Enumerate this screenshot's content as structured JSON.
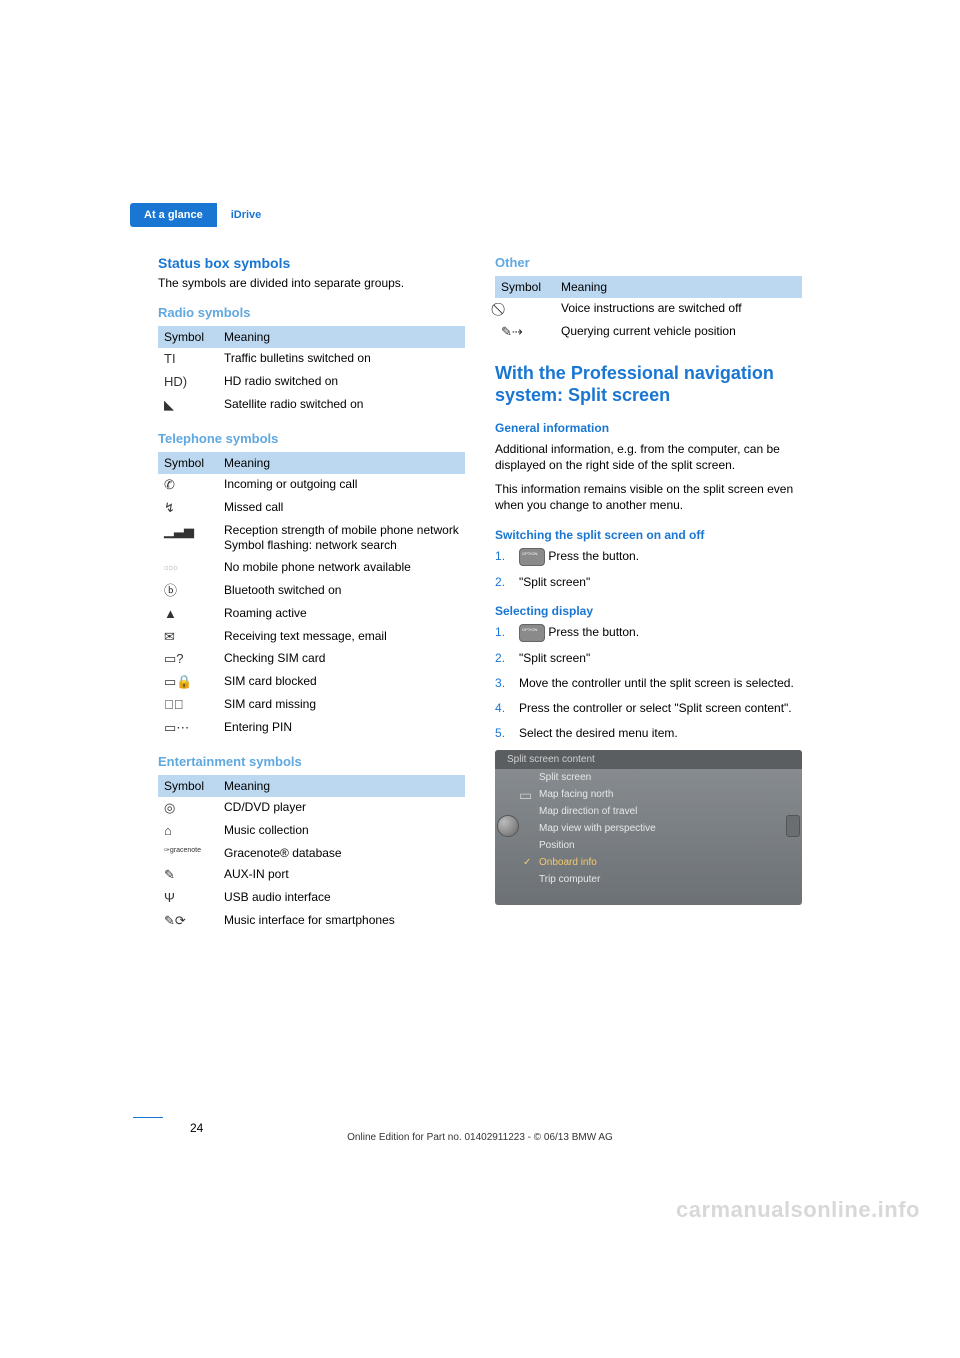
{
  "tab": {
    "active": "At a glance",
    "inactive": "iDrive"
  },
  "left": {
    "title": "Status box symbols",
    "intro": "The symbols are divided into separate groups.",
    "radio": {
      "heading": "Radio symbols",
      "th1": "Symbol",
      "th2": "Meaning",
      "rows": [
        {
          "sym": "TI",
          "txt": "Traffic bulletins switched on"
        },
        {
          "sym": "HD)",
          "txt": "HD radio switched on"
        },
        {
          "sym": "◣",
          "txt": "Satellite radio switched on"
        }
      ]
    },
    "tel": {
      "heading": "Telephone symbols",
      "th1": "Symbol",
      "th2": "Meaning",
      "rows": [
        {
          "sym": "✆",
          "txt": "Incoming or outgoing call"
        },
        {
          "sym": "↯",
          "txt": "Missed call"
        },
        {
          "sym": "▁▃▅",
          "txt": "Reception strength of mobile phone network\nSymbol flashing: network search"
        },
        {
          "sym": "▫▫▫",
          "txt": "No mobile phone network available"
        },
        {
          "sym": "ⓑ",
          "txt": "Bluetooth switched on"
        },
        {
          "sym": "▲",
          "txt": "Roaming active"
        },
        {
          "sym": "✉",
          "txt": "Receiving text message, email"
        },
        {
          "sym": "▭?",
          "txt": "Checking SIM card"
        },
        {
          "sym": "▭🔒",
          "txt": "SIM card blocked"
        },
        {
          "sym": "▭⃠",
          "txt": "SIM card missing"
        },
        {
          "sym": "▭⋯",
          "txt": "Entering PIN"
        }
      ]
    },
    "ent": {
      "heading": "Entertainment symbols",
      "th1": "Symbol",
      "th2": "Meaning",
      "rows": [
        {
          "sym": "◎",
          "txt": "CD/DVD player"
        },
        {
          "sym": "⌂",
          "txt": "Music collection"
        },
        {
          "sym": "✑gracenote",
          "txt": "Gracenote® database"
        },
        {
          "sym": "✎",
          "txt": "AUX-IN port"
        },
        {
          "sym": "Ψ",
          "txt": "USB audio interface"
        },
        {
          "sym": "✎⟳",
          "txt": "Music interface for smartphones"
        }
      ]
    }
  },
  "right": {
    "other": {
      "heading": "Other",
      "th1": "Symbol",
      "th2": "Meaning",
      "rows": [
        {
          "sym": "⃠",
          "txt": "Voice instructions are switched off"
        },
        {
          "sym": "✎⇢",
          "txt": "Querying current vehicle position"
        }
      ]
    },
    "split": {
      "title": "With the Professional navigation system: Split screen",
      "gen_h": "General information",
      "gen1": "Additional information, e.g. from the computer, can be displayed on the right side of the split screen.",
      "gen2": "This information remains visible on the split screen even when you change to another menu.",
      "sw_h": "Switching the split screen on and off",
      "sw_steps": [
        "Press the button.",
        "\"Split screen\""
      ],
      "sel_h": "Selecting display",
      "sel_steps": [
        "Press the button.",
        "\"Split screen\"",
        "Move the controller until the split screen is selected.",
        "Press the controller or select \"Split screen content\".",
        "Select the desired menu item."
      ],
      "ss": {
        "title": "Split screen content",
        "items": [
          "Split screen",
          "Map facing north",
          "Map direction of travel",
          "Map view with perspective",
          "Position",
          "Onboard info",
          "Trip computer"
        ]
      }
    }
  },
  "page_number": "24",
  "footer": "Online Edition for Part no. 01402911223 - © 06/13 BMW AG",
  "watermark": "carmanualsonline.info"
}
